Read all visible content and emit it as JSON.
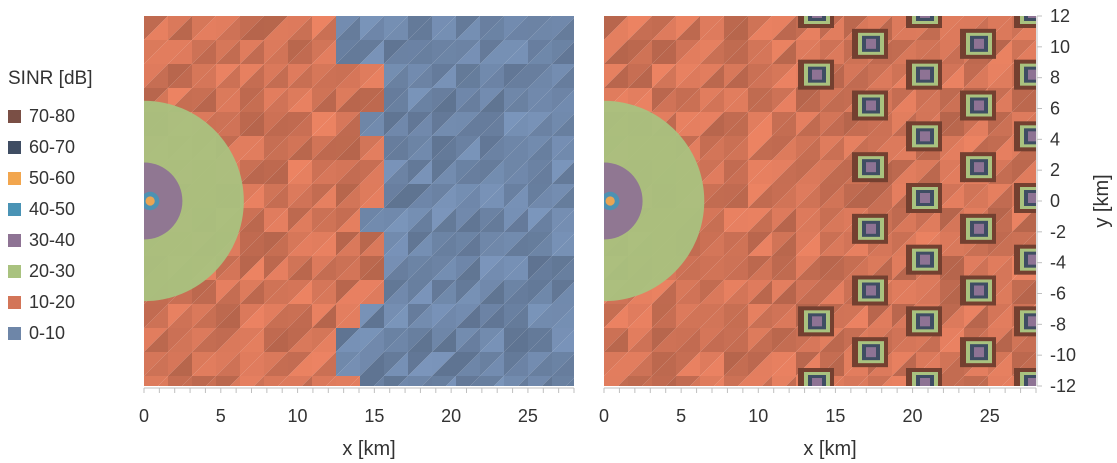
{
  "legend": {
    "title": "SINR [dB]",
    "items": [
      {
        "label": "70-80",
        "color": "#7a4f45"
      },
      {
        "label": "60-70",
        "color": "#3f4d63"
      },
      {
        "label": "50-60",
        "color": "#f2a64e"
      },
      {
        "label": "40-50",
        "color": "#4a93b5"
      },
      {
        "label": "30-40",
        "color": "#8e7394"
      },
      {
        "label": "20-30",
        "color": "#a9c27f"
      },
      {
        "label": "10-20",
        "color": "#d37558"
      },
      {
        "label": "0-10",
        "color": "#6e86a8"
      }
    ]
  },
  "chart_data": [
    {
      "type": "heatmap",
      "xlabel": "x [km]",
      "ylabel": "",
      "xlim": [
        0,
        28
      ],
      "ylim": [
        -12,
        12
      ],
      "xticks": [
        0,
        5,
        10,
        15,
        20,
        25
      ],
      "yticks": [],
      "regions": [
        {
          "bin": "0-10",
          "description": "x > ~15 km"
        },
        {
          "bin": "10-20",
          "description": "x up to ~15 km"
        },
        {
          "bin": "20-30",
          "center": [
            0,
            0
          ],
          "radius_km": 6.5
        },
        {
          "bin": "30-40",
          "center": [
            0,
            0
          ],
          "radius_km": 2.5
        },
        {
          "bin": "40-50",
          "center": [
            0.4,
            0
          ],
          "radius_km": 0.6
        },
        {
          "bin": "50-60",
          "center": [
            0.4,
            0
          ],
          "radius_km": 0.3
        }
      ]
    },
    {
      "type": "heatmap",
      "xlabel": "x [km]",
      "ylabel": "y [km]",
      "xlim": [
        0,
        28
      ],
      "ylim": [
        -12,
        12
      ],
      "xticks": [
        0,
        5,
        10,
        15,
        20,
        25
      ],
      "yticks": [
        12,
        10,
        8,
        6,
        4,
        2,
        0,
        -2,
        -4,
        -6,
        -8,
        -10,
        -12
      ],
      "regions": [
        {
          "bin": "10-20",
          "description": "background"
        },
        {
          "bin": "20-30",
          "center": [
            0,
            0
          ],
          "radius_km": 6.5
        },
        {
          "bin": "30-40",
          "center": [
            0,
            0
          ],
          "radius_km": 2.5
        },
        {
          "bin": "40-50",
          "center": [
            0.4,
            0
          ],
          "radius_km": 0.6
        },
        {
          "bin": "50-60",
          "center": [
            0.4,
            0
          ],
          "radius_km": 0.3
        }
      ],
      "hotspots": [
        {
          "x": 14,
          "y": 12
        },
        {
          "x": 21,
          "y": 12
        },
        {
          "x": 28,
          "y": 12
        },
        {
          "x": 17.5,
          "y": 10
        },
        {
          "x": 24.5,
          "y": 10
        },
        {
          "x": 14,
          "y": 8
        },
        {
          "x": 21,
          "y": 8
        },
        {
          "x": 28,
          "y": 8
        },
        {
          "x": 17.5,
          "y": 6
        },
        {
          "x": 24.5,
          "y": 6
        },
        {
          "x": 21,
          "y": 4
        },
        {
          "x": 28,
          "y": 4
        },
        {
          "x": 17.5,
          "y": 2
        },
        {
          "x": 24.5,
          "y": 2
        },
        {
          "x": 21,
          "y": 0
        },
        {
          "x": 28,
          "y": 0
        },
        {
          "x": 17.5,
          "y": -2
        },
        {
          "x": 24.5,
          "y": -2
        },
        {
          "x": 21,
          "y": -4
        },
        {
          "x": 28,
          "y": -4
        },
        {
          "x": 17.5,
          "y": -6
        },
        {
          "x": 24.5,
          "y": -6
        },
        {
          "x": 14,
          "y": -8
        },
        {
          "x": 21,
          "y": -8
        },
        {
          "x": 28,
          "y": -8
        },
        {
          "x": 17.5,
          "y": -10
        },
        {
          "x": 24.5,
          "y": -10
        },
        {
          "x": 14,
          "y": -12
        },
        {
          "x": 21,
          "y": -12
        },
        {
          "x": 28,
          "y": -12
        }
      ]
    }
  ]
}
